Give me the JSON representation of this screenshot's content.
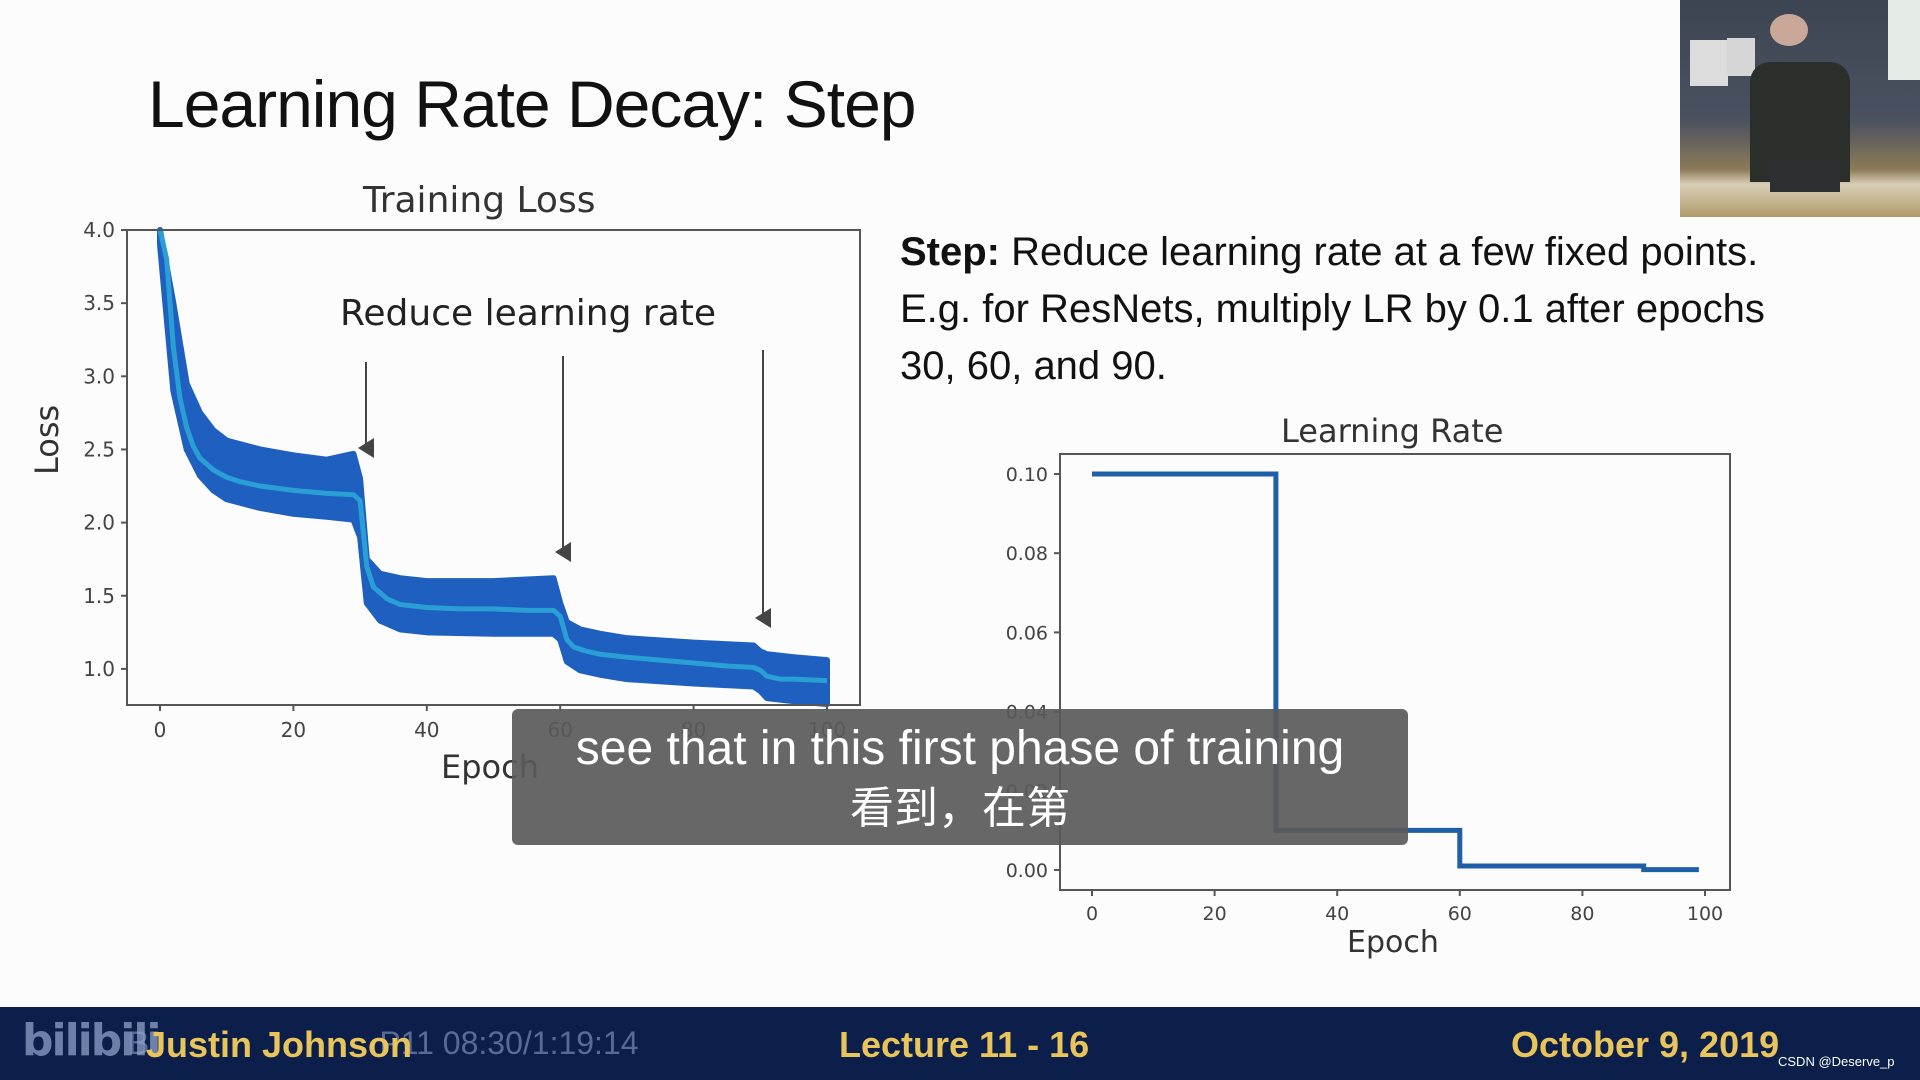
{
  "slide": {
    "title_main": "Learning Rate Decay:",
    "title_sub": " Step",
    "body_bold": "Step:",
    "body_line1": " Reduce learning rate at a few fixed points.",
    "body_line2": "E.g. for ResNets, multiply LR by 0.1 after epochs",
    "body_line3": "30, 60, and 90."
  },
  "subtitles": {
    "english": "see that in this first phase of training",
    "chinese": "看到，在第"
  },
  "footer": {
    "presenter": "Justin Johnson",
    "lecture": "Lecture 11 - 16",
    "date": "October 9, 2019",
    "platform_logo": "bilibili",
    "watermark_prefix": "B",
    "watermark_time": "P11 08:30/1:19:14",
    "credit": "CSDN @Deserve_p",
    "bar_color": "#0c1f4a",
    "text_color": "#e8c45a"
  },
  "video_inset": {
    "description": "lecturer-webcam"
  },
  "chart_data": [
    {
      "type": "line",
      "title": "Training Loss",
      "xlabel": "Epoch",
      "ylabel": "Loss",
      "xlim": [
        -5,
        105
      ],
      "ylim": [
        0.75,
        4.0
      ],
      "xticks": [
        0,
        20,
        40,
        60,
        80,
        100
      ],
      "yticks": [
        1.0,
        1.5,
        2.0,
        2.5,
        3.0,
        3.5,
        4.0
      ],
      "ytick_labels": [
        "1.0",
        "1.5",
        "2.0",
        "2.5",
        "3.0",
        "3.5",
        "4.0"
      ],
      "annotation": "Reduce learning rate",
      "annotation_arrows_at_epochs": [
        30,
        60,
        90
      ],
      "series": [
        {
          "name": "smoothed loss",
          "color": "#2a9fd6",
          "x": [
            0,
            1,
            2,
            3,
            4,
            5,
            6,
            8,
            10,
            12,
            15,
            20,
            25,
            29,
            30,
            31,
            32,
            34,
            36,
            40,
            45,
            50,
            55,
            59,
            60,
            61,
            62,
            64,
            66,
            70,
            75,
            80,
            85,
            89,
            90,
            91,
            93,
            95,
            100
          ],
          "y": [
            4.2,
            3.8,
            3.2,
            2.85,
            2.65,
            2.52,
            2.44,
            2.36,
            2.31,
            2.28,
            2.25,
            2.22,
            2.2,
            2.19,
            2.15,
            1.7,
            1.56,
            1.48,
            1.44,
            1.42,
            1.41,
            1.41,
            1.4,
            1.4,
            1.36,
            1.2,
            1.15,
            1.12,
            1.1,
            1.08,
            1.06,
            1.04,
            1.02,
            1.01,
            0.99,
            0.95,
            0.93,
            0.93,
            0.92
          ]
        },
        {
          "name": "raw loss band (upper)",
          "color": "#1f5fbf",
          "x": [
            0,
            2,
            4,
            6,
            8,
            10,
            15,
            20,
            25,
            29,
            30,
            31,
            33,
            36,
            40,
            50,
            59,
            60,
            61,
            63,
            66,
            70,
            80,
            89,
            90,
            91,
            95,
            100
          ],
          "y": [
            4.3,
            3.5,
            2.95,
            2.75,
            2.63,
            2.56,
            2.5,
            2.46,
            2.43,
            2.47,
            2.3,
            1.75,
            1.65,
            1.62,
            1.6,
            1.6,
            1.62,
            1.45,
            1.32,
            1.27,
            1.24,
            1.21,
            1.18,
            1.16,
            1.12,
            1.1,
            1.08,
            1.06
          ]
        },
        {
          "name": "raw loss band (lower)",
          "color": "#1f5fbf",
          "x": [
            0,
            2,
            4,
            6,
            8,
            10,
            15,
            20,
            25,
            29,
            30,
            31,
            33,
            36,
            40,
            50,
            59,
            60,
            61,
            63,
            66,
            70,
            80,
            89,
            90,
            91,
            95,
            100
          ],
          "y": [
            3.9,
            2.9,
            2.5,
            2.32,
            2.22,
            2.16,
            2.1,
            2.06,
            2.04,
            2.02,
            1.9,
            1.45,
            1.33,
            1.27,
            1.25,
            1.24,
            1.24,
            1.2,
            1.05,
            0.99,
            0.96,
            0.93,
            0.9,
            0.88,
            0.85,
            0.8,
            0.78,
            0.76
          ]
        }
      ]
    },
    {
      "type": "line",
      "title": "Learning Rate",
      "xlabel": "Epoch",
      "ylabel": "",
      "xlim": [
        -5,
        105
      ],
      "ylim": [
        -0.005,
        0.105
      ],
      "xticks": [
        0,
        20,
        40,
        60,
        80,
        100
      ],
      "yticks": [
        0.0,
        0.02,
        0.04,
        0.06,
        0.08,
        0.1
      ],
      "ytick_labels": [
        "0.00",
        "0.02",
        "0.04",
        "0.06",
        "0.08",
        "0.10"
      ],
      "series": [
        {
          "name": "learning rate",
          "color": "#1f5fa8",
          "x": [
            0,
            30,
            30,
            60,
            60,
            90,
            90,
            99
          ],
          "y": [
            0.1,
            0.1,
            0.01,
            0.01,
            0.001,
            0.001,
            0.0001,
            0.0001
          ]
        }
      ]
    }
  ]
}
